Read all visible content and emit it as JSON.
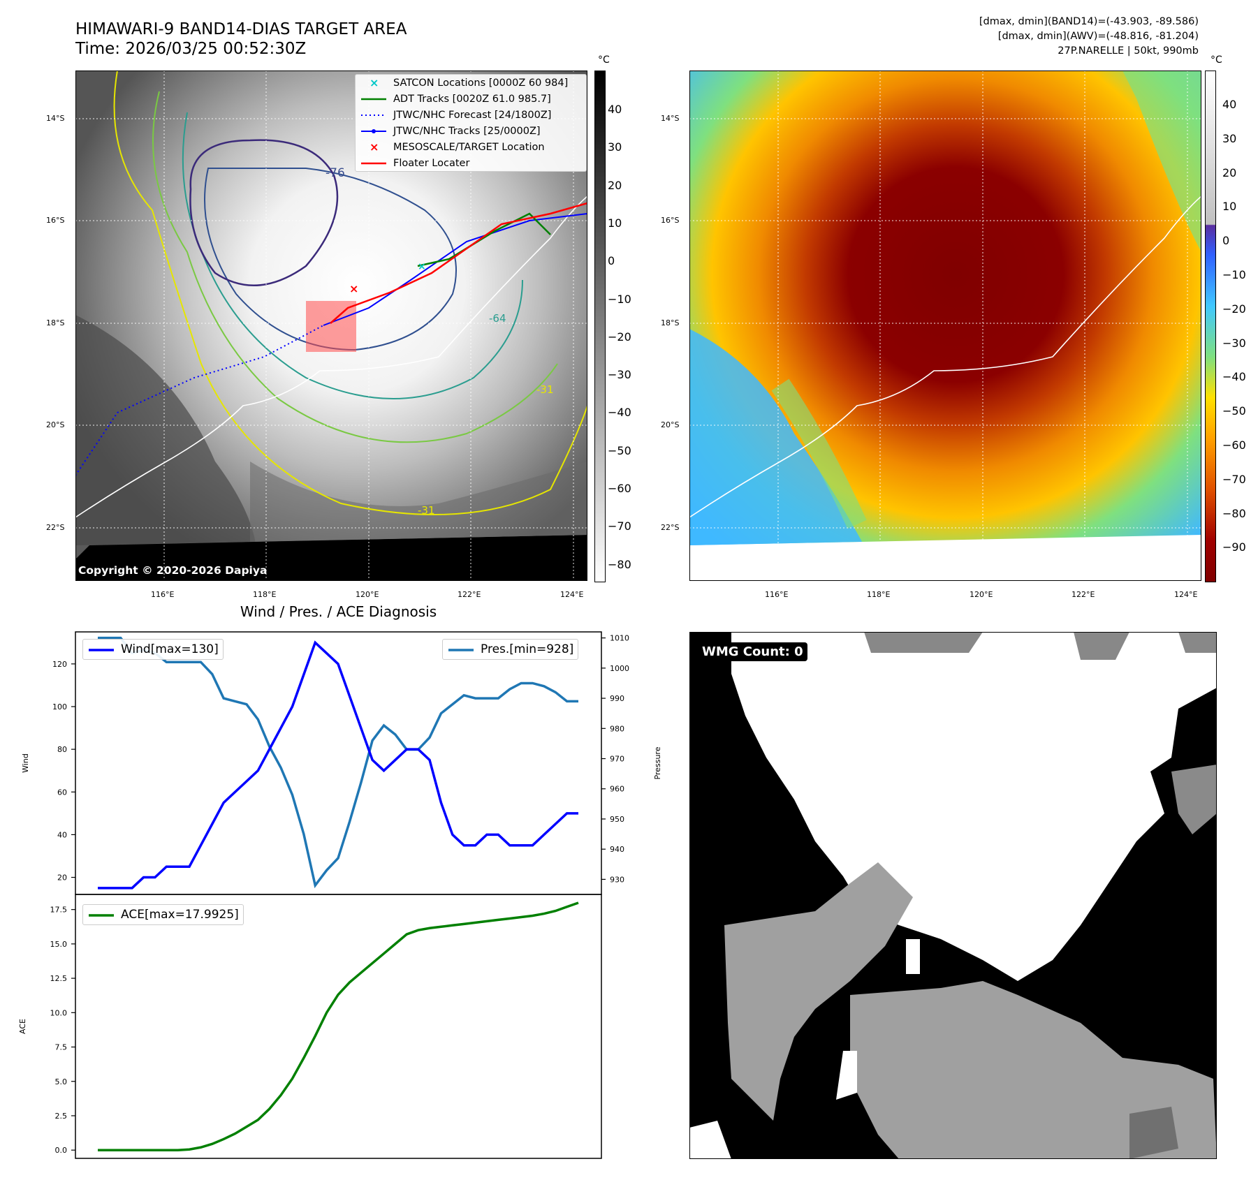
{
  "header": {
    "title_line1": "HIMAWARI-9 BAND14-DIAS TARGET AREA",
    "title_line2": "Time: 2026/03/25 00:52:30Z",
    "info_line1": "[dmax, dmin](BAND14)=(-43.903, -89.586)",
    "info_line2": "[dmax, dmin](AWV)=(-48.816, -81.204)",
    "info_line3": "27P.NARELLE | 50kt, 990mb"
  },
  "maps": {
    "lat_labels": [
      "14°S",
      "16°S",
      "18°S",
      "20°S",
      "22°S"
    ],
    "lon_labels": [
      "116°E",
      "118°E",
      "120°E",
      "122°E",
      "124°E"
    ],
    "unit": "°C",
    "colorbar_left_ticks": [
      "40",
      "30",
      "20",
      "10",
      "0",
      "−10",
      "−20",
      "−30",
      "−40",
      "−50",
      "−60",
      "−70",
      "−80"
    ],
    "colorbar_right_ticks": [
      "40",
      "30",
      "20",
      "10",
      "0",
      "−10",
      "−20",
      "−30",
      "−40",
      "−50",
      "−60",
      "−70",
      "−80",
      "−90"
    ],
    "contour_labels": [
      "-76",
      "-64",
      "-31",
      "-31"
    ],
    "copyright": "Copyright © 2020-2026 Dapiya",
    "legend": [
      {
        "label": "SATCON Locations [0000Z 60 984]",
        "color": "#00c8c8",
        "symbol": "x"
      },
      {
        "label": "ADT Tracks [0020Z 61.0 985.7]",
        "color": "#008000",
        "symbol": "line"
      },
      {
        "label": "JTWC/NHC Forecast [24/1800Z]",
        "color": "#0000ff",
        "symbol": "dotted"
      },
      {
        "label": "JTWC/NHC Tracks [25/0000Z]",
        "color": "#0000ff",
        "symbol": "line-dot"
      },
      {
        "label": "MESOSCALE/TARGET Location",
        "color": "#ff0000",
        "symbol": "x"
      },
      {
        "label": "Floater Locater",
        "color": "#ff0000",
        "symbol": "line"
      }
    ]
  },
  "diagnosis": {
    "title": "Wind / Pres. / ACE Diagnosis",
    "wind_label": "Wind",
    "pressure_label": "Pressure",
    "ace_label": "ACE",
    "wind_legend": "Wind[max=130]",
    "pres_legend": "Pres.[min=928]",
    "ace_legend": "ACE[max=17.9925]",
    "wind_ticks": [
      "20",
      "40",
      "60",
      "80",
      "100",
      "120"
    ],
    "pres_ticks": [
      "930",
      "940",
      "950",
      "960",
      "970",
      "980",
      "990",
      "1000",
      "1010"
    ],
    "ace_ticks": [
      "0.0",
      "2.5",
      "5.0",
      "7.5",
      "10.0",
      "12.5",
      "15.0",
      "17.5"
    ]
  },
  "wmg": {
    "label": "WMG Count: 0"
  },
  "colors": {
    "wind": "#0000ff",
    "pressure": "#1f77b4",
    "ace": "#008000"
  },
  "chart_data": [
    {
      "type": "line",
      "title": "Wind / Pres. / ACE Diagnosis",
      "xlabel": "",
      "ylabel": "Wind",
      "ylim": [
        12,
        135
      ],
      "series": [
        {
          "name": "Wind[max=130]",
          "axis": "left",
          "values": [
            15,
            15,
            15,
            15,
            20,
            20,
            25,
            25,
            25,
            35,
            45,
            55,
            60,
            65,
            70,
            80,
            90,
            100,
            115,
            130,
            125,
            120,
            105,
            90,
            75,
            70,
            75,
            80,
            80,
            75,
            55,
            40,
            35,
            35,
            40,
            40,
            35,
            35,
            35,
            40,
            45,
            50,
            50
          ]
        },
        {
          "name": "Pres.[min=928]",
          "axis": "right",
          "ylim": [
            925,
            1012
          ],
          "values": [
            1010,
            1010,
            1010,
            1005,
            1006,
            1005,
            1002,
            1002,
            1002,
            1002,
            998,
            990,
            989,
            988,
            983,
            974,
            967,
            958,
            945,
            928,
            933,
            937,
            949,
            962,
            976,
            981,
            978,
            973,
            973,
            977,
            985,
            988,
            991,
            990,
            990,
            990,
            993,
            995,
            995,
            994,
            992,
            989,
            989
          ]
        }
      ]
    },
    {
      "type": "line",
      "title": "",
      "xlabel": "",
      "ylabel": "ACE",
      "ylim": [
        -0.6,
        18.6
      ],
      "series": [
        {
          "name": "ACE[max=17.9925]",
          "values": [
            0,
            0,
            0,
            0,
            0,
            0,
            0,
            0,
            0.05,
            0.2,
            0.45,
            0.8,
            1.2,
            1.7,
            2.2,
            3,
            4,
            5.2,
            6.7,
            8.3,
            10,
            11.3,
            12.2,
            12.9,
            13.6,
            14.3,
            15,
            15.7,
            16,
            16.15,
            16.25,
            16.35,
            16.45,
            16.55,
            16.65,
            16.75,
            16.85,
            16.95,
            17.05,
            17.2,
            17.4,
            17.7,
            17.99
          ]
        }
      ]
    }
  ]
}
